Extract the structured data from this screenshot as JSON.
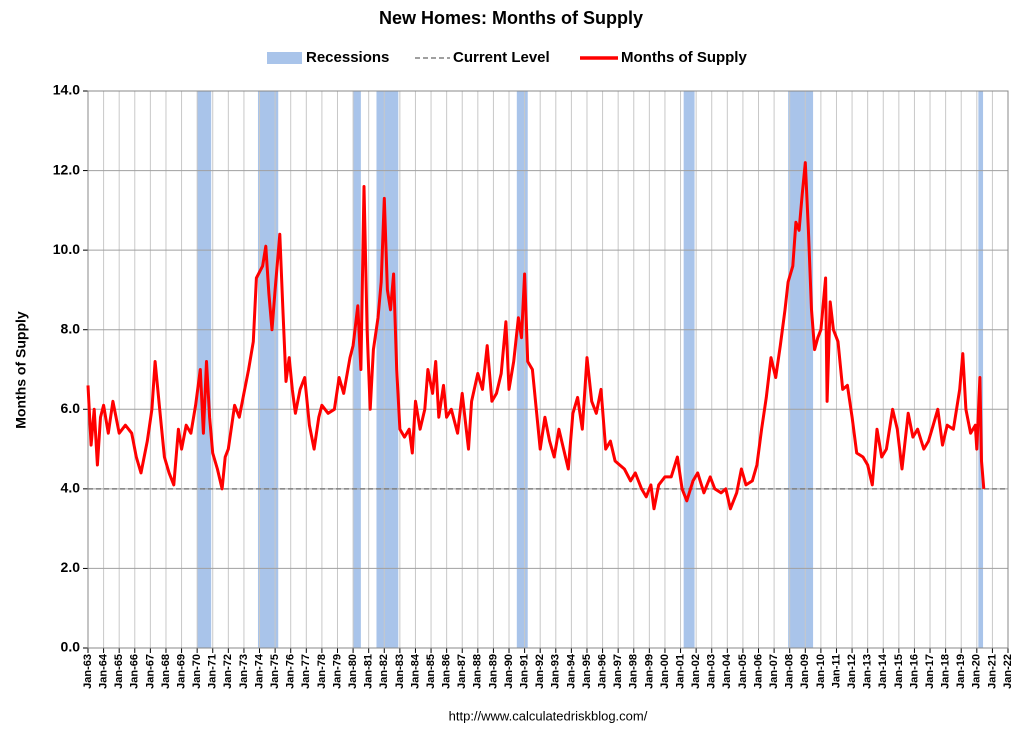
{
  "chart_data": {
    "type": "line",
    "title": "New Homes: Months of Supply",
    "y_label": "Months of Supply",
    "source": "http://www.calculatedriskblog.com/",
    "grid": true,
    "legend": "top",
    "xlim": [
      1963,
      2022
    ],
    "ylim": [
      0,
      14
    ],
    "yticks": [
      {
        "value": 0,
        "label": "0.0"
      },
      {
        "value": 2,
        "label": "2.0"
      },
      {
        "value": 4,
        "label": "4.0"
      },
      {
        "value": 6,
        "label": "6.0"
      },
      {
        "value": 8,
        "label": "8.0"
      },
      {
        "value": 10,
        "label": "10.0"
      },
      {
        "value": 12,
        "label": "12.0"
      },
      {
        "value": 14,
        "label": "14.0"
      }
    ],
    "xticks": [
      {
        "value": 1963,
        "label": "Jan-63"
      },
      {
        "value": 1964,
        "label": "Jan-64"
      },
      {
        "value": 1965,
        "label": "Jan-65"
      },
      {
        "value": 1966,
        "label": "Jan-66"
      },
      {
        "value": 1967,
        "label": "Jan-67"
      },
      {
        "value": 1968,
        "label": "Jan-68"
      },
      {
        "value": 1969,
        "label": "Jan-69"
      },
      {
        "value": 1970,
        "label": "Jan-70"
      },
      {
        "value": 1971,
        "label": "Jan-71"
      },
      {
        "value": 1972,
        "label": "Jan-72"
      },
      {
        "value": 1973,
        "label": "Jan-73"
      },
      {
        "value": 1974,
        "label": "Jan-74"
      },
      {
        "value": 1975,
        "label": "Jan-75"
      },
      {
        "value": 1976,
        "label": "Jan-76"
      },
      {
        "value": 1977,
        "label": "Jan-77"
      },
      {
        "value": 1978,
        "label": "Jan-78"
      },
      {
        "value": 1979,
        "label": "Jan-79"
      },
      {
        "value": 1980,
        "label": "Jan-80"
      },
      {
        "value": 1981,
        "label": "Jan-81"
      },
      {
        "value": 1982,
        "label": "Jan-82"
      },
      {
        "value": 1983,
        "label": "Jan-83"
      },
      {
        "value": 1984,
        "label": "Jan-84"
      },
      {
        "value": 1985,
        "label": "Jan-85"
      },
      {
        "value": 1986,
        "label": "Jan-86"
      },
      {
        "value": 1987,
        "label": "Jan-87"
      },
      {
        "value": 1988,
        "label": "Jan-88"
      },
      {
        "value": 1989,
        "label": "Jan-89"
      },
      {
        "value": 1990,
        "label": "Jan-90"
      },
      {
        "value": 1991,
        "label": "Jan-91"
      },
      {
        "value": 1992,
        "label": "Jan-92"
      },
      {
        "value": 1993,
        "label": "Jan-93"
      },
      {
        "value": 1994,
        "label": "Jan-94"
      },
      {
        "value": 1995,
        "label": "Jan-95"
      },
      {
        "value": 1996,
        "label": "Jan-96"
      },
      {
        "value": 1997,
        "label": "Jan-97"
      },
      {
        "value": 1998,
        "label": "Jan-98"
      },
      {
        "value": 1999,
        "label": "Jan-99"
      },
      {
        "value": 2000,
        "label": "Jan-00"
      },
      {
        "value": 2001,
        "label": "Jan-01"
      },
      {
        "value": 2002,
        "label": "Jan-02"
      },
      {
        "value": 2003,
        "label": "Jan-03"
      },
      {
        "value": 2004,
        "label": "Jan-04"
      },
      {
        "value": 2005,
        "label": "Jan-05"
      },
      {
        "value": 2006,
        "label": "Jan-06"
      },
      {
        "value": 2007,
        "label": "Jan-07"
      },
      {
        "value": 2008,
        "label": "Jan-08"
      },
      {
        "value": 2009,
        "label": "Jan-09"
      },
      {
        "value": 2010,
        "label": "Jan-10"
      },
      {
        "value": 2011,
        "label": "Jan-11"
      },
      {
        "value": 2012,
        "label": "Jan-12"
      },
      {
        "value": 2013,
        "label": "Jan-13"
      },
      {
        "value": 2014,
        "label": "Jan-14"
      },
      {
        "value": 2015,
        "label": "Jan-15"
      },
      {
        "value": 2016,
        "label": "Jan-16"
      },
      {
        "value": 2017,
        "label": "Jan-17"
      },
      {
        "value": 2018,
        "label": "Jan-18"
      },
      {
        "value": 2019,
        "label": "Jan-19"
      },
      {
        "value": 2020,
        "label": "Jan-20"
      },
      {
        "value": 2021,
        "label": "Jan-21"
      },
      {
        "value": 2022,
        "label": "Jan-22"
      }
    ],
    "recessions": {
      "name": "Recessions",
      "color": "#a9c4ea",
      "ranges": [
        [
          1970.0,
          1970.9
        ],
        [
          1973.9,
          1975.2
        ],
        [
          1980.0,
          1980.5
        ],
        [
          1981.5,
          1982.9
        ],
        [
          1990.5,
          1991.2
        ],
        [
          2001.2,
          2001.9
        ],
        [
          2007.9,
          2009.5
        ],
        [
          2020.1,
          2020.4
        ]
      ]
    },
    "reference_line": {
      "name": "Current Level",
      "value": 4.0,
      "color": "#808080"
    },
    "x": [
      1963.0,
      1963.2,
      1963.4,
      1963.6,
      1963.8,
      1964.0,
      1964.3,
      1964.6,
      1965.0,
      1965.4,
      1965.8,
      1966.1,
      1966.4,
      1966.8,
      1967.1,
      1967.3,
      1967.6,
      1967.9,
      1968.2,
      1968.5,
      1968.8,
      1969.0,
      1969.3,
      1969.6,
      1969.9,
      1970.2,
      1970.4,
      1970.6,
      1970.8,
      1971.0,
      1971.3,
      1971.6,
      1971.8,
      1972.0,
      1972.4,
      1972.7,
      1973.0,
      1973.3,
      1973.6,
      1973.8,
      1974.2,
      1974.4,
      1974.6,
      1974.8,
      1975.0,
      1975.3,
      1975.5,
      1975.7,
      1975.9,
      1976.1,
      1976.3,
      1976.6,
      1976.9,
      1977.2,
      1977.5,
      1977.8,
      1978.0,
      1978.4,
      1978.8,
      1979.1,
      1979.4,
      1979.8,
      1980.0,
      1980.3,
      1980.5,
      1980.7,
      1980.9,
      1981.1,
      1981.3,
      1981.6,
      1981.8,
      1982.0,
      1982.2,
      1982.4,
      1982.6,
      1982.8,
      1983.0,
      1983.3,
      1983.6,
      1983.8,
      1984.0,
      1984.3,
      1984.6,
      1984.8,
      1985.1,
      1985.3,
      1985.5,
      1985.8,
      1986.0,
      1986.3,
      1986.7,
      1987.0,
      1987.4,
      1987.6,
      1988.0,
      1988.3,
      1988.6,
      1988.9,
      1989.2,
      1989.5,
      1989.8,
      1990.0,
      1990.3,
      1990.6,
      1990.8,
      1991.0,
      1991.2,
      1991.5,
      1991.7,
      1992.0,
      1992.3,
      1992.6,
      1992.9,
      1993.2,
      1993.5,
      1993.8,
      1994.1,
      1994.4,
      1994.7,
      1995.0,
      1995.3,
      1995.6,
      1995.9,
      1996.2,
      1996.5,
      1996.8,
      1997.1,
      1997.4,
      1997.8,
      1998.1,
      1998.5,
      1998.8,
      1999.1,
      1999.3,
      1999.6,
      2000.0,
      2000.4,
      2000.8,
      2001.1,
      2001.4,
      2001.8,
      2002.1,
      2002.5,
      2002.9,
      2003.2,
      2003.6,
      2003.9,
      2004.2,
      2004.6,
      2004.9,
      2005.2,
      2005.6,
      2005.9,
      2006.2,
      2006.5,
      2006.8,
      2007.1,
      2007.4,
      2007.7,
      2007.9,
      2008.2,
      2008.4,
      2008.6,
      2008.8,
      2009.0,
      2009.2,
      2009.4,
      2009.6,
      2009.8,
      2010.0,
      2010.3,
      2010.4,
      2010.6,
      2010.8,
      2011.1,
      2011.4,
      2011.7,
      2012.0,
      2012.3,
      2012.7,
      2013.0,
      2013.3,
      2013.6,
      2013.9,
      2014.2,
      2014.6,
      2014.9,
      2015.2,
      2015.6,
      2015.9,
      2016.2,
      2016.6,
      2016.9,
      2017.2,
      2017.5,
      2017.8,
      2018.1,
      2018.5,
      2018.9,
      2019.1,
      2019.3,
      2019.6,
      2019.9,
      2020.0,
      2020.2,
      2020.3,
      2020.45
    ],
    "series": [
      {
        "name": "Months of Supply",
        "color": "#ff0000",
        "values": [
          6.6,
          5.1,
          6.0,
          4.6,
          5.8,
          6.1,
          5.4,
          6.2,
          5.4,
          5.6,
          5.4,
          4.8,
          4.4,
          5.2,
          6.0,
          7.2,
          6.0,
          4.8,
          4.4,
          4.1,
          5.5,
          5.0,
          5.6,
          5.4,
          6.1,
          7.0,
          5.4,
          7.2,
          5.8,
          4.9,
          4.5,
          4.0,
          4.8,
          5.0,
          6.1,
          5.8,
          6.4,
          7.0,
          7.7,
          9.3,
          9.6,
          10.1,
          8.9,
          8.0,
          9.0,
          10.4,
          8.5,
          6.7,
          7.3,
          6.5,
          5.9,
          6.5,
          6.8,
          5.6,
          5.0,
          5.8,
          6.1,
          5.9,
          6.0,
          6.8,
          6.4,
          7.3,
          7.6,
          8.6,
          7.0,
          11.6,
          8.0,
          6.0,
          7.5,
          8.3,
          9.2,
          11.3,
          9.0,
          8.5,
          9.4,
          7.0,
          5.5,
          5.3,
          5.5,
          4.9,
          6.2,
          5.5,
          6.0,
          7.0,
          6.4,
          7.2,
          5.8,
          6.6,
          5.8,
          6.0,
          5.4,
          6.4,
          5.0,
          6.2,
          6.9,
          6.5,
          7.6,
          6.2,
          6.4,
          6.9,
          8.2,
          6.5,
          7.2,
          8.3,
          7.8,
          9.4,
          7.2,
          7.0,
          6.2,
          5.0,
          5.8,
          5.2,
          4.8,
          5.5,
          5.0,
          4.5,
          5.9,
          6.3,
          5.5,
          7.3,
          6.2,
          5.9,
          6.5,
          5.0,
          5.2,
          4.7,
          4.6,
          4.5,
          4.2,
          4.4,
          4.0,
          3.8,
          4.1,
          3.5,
          4.1,
          4.3,
          4.3,
          4.8,
          4.0,
          3.7,
          4.2,
          4.4,
          3.9,
          4.3,
          4.0,
          3.9,
          4.0,
          3.5,
          3.9,
          4.5,
          4.1,
          4.2,
          4.6,
          5.5,
          6.3,
          7.3,
          6.8,
          7.6,
          8.5,
          9.2,
          9.6,
          10.7,
          10.5,
          11.4,
          12.2,
          10.5,
          8.5,
          7.5,
          7.8,
          8.0,
          9.3,
          6.2,
          8.7,
          8.0,
          7.7,
          6.5,
          6.6,
          5.8,
          4.9,
          4.8,
          4.6,
          4.1,
          5.5,
          4.8,
          5.0,
          6.0,
          5.5,
          4.5,
          5.9,
          5.3,
          5.5,
          5.0,
          5.2,
          5.6,
          6.0,
          5.1,
          5.6,
          5.5,
          6.5,
          7.4,
          6.0,
          5.4,
          5.6,
          5.0,
          6.8,
          4.7,
          4.0
        ]
      }
    ]
  }
}
